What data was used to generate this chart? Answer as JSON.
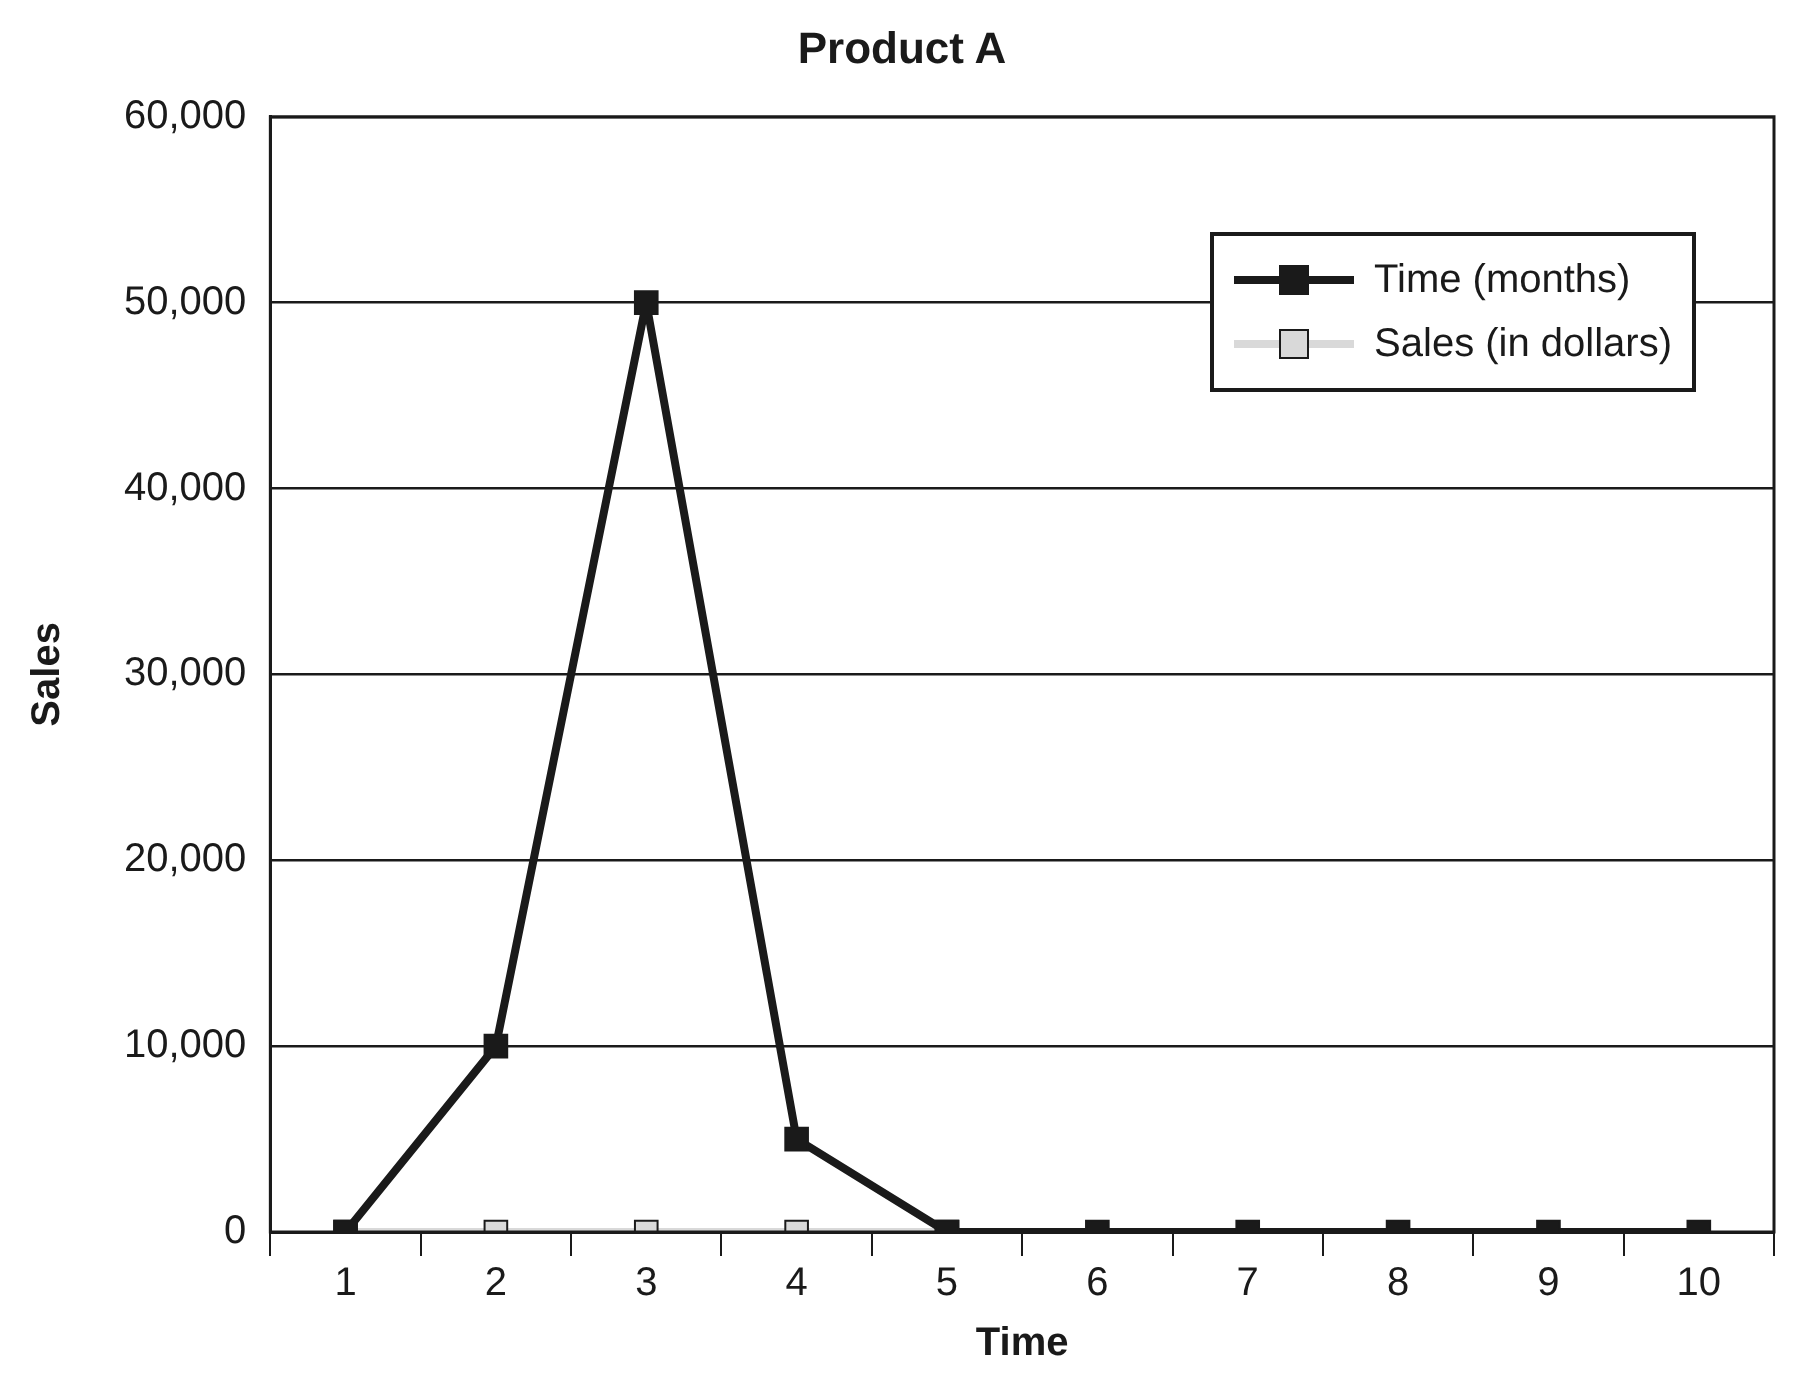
{
  "chart_data": {
    "type": "line",
    "title": "Product A",
    "xlabel": "Time",
    "ylabel": "Sales",
    "categories": [
      "1",
      "2",
      "3",
      "4",
      "5",
      "6",
      "7",
      "8",
      "9",
      "10"
    ],
    "series": [
      {
        "name": "Time (months)",
        "color": "#1a1a1a",
        "values": [
          0,
          10000,
          50000,
          5000,
          0,
          0,
          0,
          0,
          0,
          0
        ]
      },
      {
        "name": "Sales (in dollars)",
        "color": "#d9d9d9",
        "values": [
          0,
          0,
          0,
          0,
          0,
          null,
          null,
          null,
          null,
          null
        ]
      }
    ],
    "ylim": [
      0,
      60000
    ],
    "yticks": [
      0,
      {
        "value": 10000,
        "label": "10,000"
      },
      {
        "value": 20000,
        "label": "20,000"
      },
      {
        "value": 30000,
        "label": "30,000"
      },
      {
        "value": 40000,
        "label": "40,000"
      },
      {
        "value": 50000,
        "label": "50,000"
      },
      {
        "value": 60000,
        "label": "60,000"
      }
    ],
    "grid": "y",
    "legend": "top right",
    "marker": "square"
  }
}
